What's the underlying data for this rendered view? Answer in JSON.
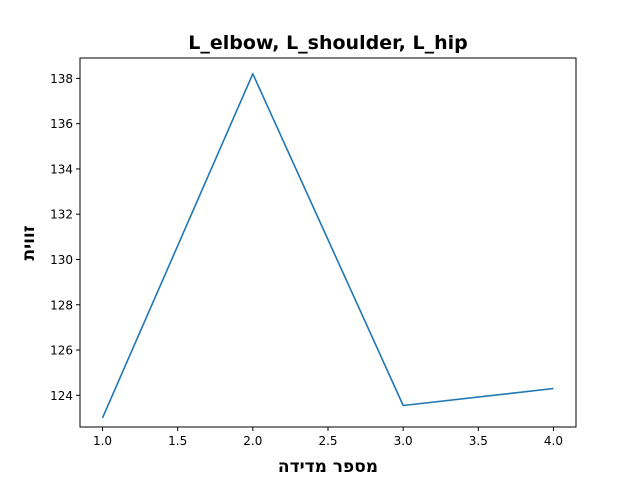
{
  "chart_data": {
    "type": "line",
    "title": "L_elbow, L_shoulder, L_hip",
    "xlabel": "מספר מדידה",
    "ylabel": "זווית",
    "xlim": [
      0.85,
      4.15
    ],
    "ylim": [
      122.6,
      138.9
    ],
    "xticks": [
      1.0,
      1.5,
      2.0,
      2.5,
      3.0,
      3.5,
      4.0
    ],
    "xtick_labels": [
      "1.0",
      "1.5",
      "2.0",
      "2.5",
      "3.0",
      "3.5",
      "4.0"
    ],
    "yticks": [
      124,
      126,
      128,
      130,
      132,
      134,
      136,
      138
    ],
    "ytick_labels": [
      "124",
      "126",
      "128",
      "130",
      "132",
      "134",
      "136",
      "138"
    ],
    "grid": false,
    "series": [
      {
        "x": [
          1,
          2,
          3,
          4
        ],
        "values": [
          123.0,
          138.2,
          123.55,
          124.3
        ],
        "color": "#1f77b4"
      }
    ]
  }
}
